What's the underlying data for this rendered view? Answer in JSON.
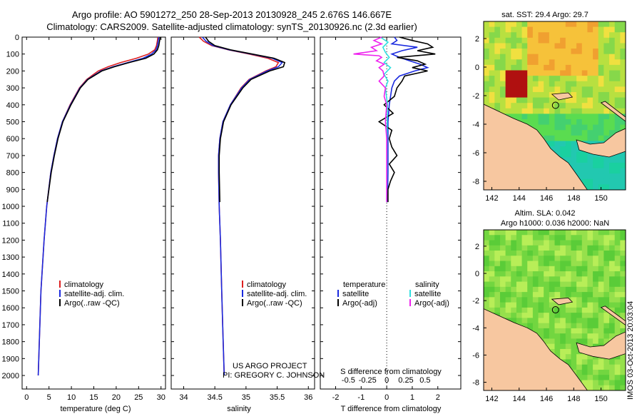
{
  "header": {
    "line1": "Argo profile: AO 5901272_250 28-Sep-2013 20130928_245 2.676S 146.667E",
    "line2": "Climatology: CARS2009. Satellite-adjusted climatology: synTS_20130926.nc (2.3d earlier)"
  },
  "colors": {
    "climatology": "#dd2020",
    "satellite": "#1a2adf",
    "argo": "#000000",
    "sal_satellite": "#30e0e0",
    "sal_argo": "#ee22ee"
  },
  "chart_data": [
    {
      "type": "line",
      "id": "temperature",
      "xlabel": "temperature (deg C)",
      "ylabel": "",
      "xlim": [
        -1,
        31
      ],
      "ylim": [
        2080,
        0
      ],
      "xticks": [
        0,
        5,
        10,
        15,
        20,
        25,
        30
      ],
      "yticks": [
        0,
        100,
        200,
        300,
        400,
        500,
        600,
        700,
        800,
        900,
        1000,
        1100,
        1200,
        1300,
        1400,
        1500,
        1600,
        1700,
        1800,
        1900,
        2000
      ],
      "series": [
        {
          "name": "climatology",
          "color": "#dd2020",
          "depth": [
            0,
            20,
            50,
            75,
            100,
            125,
            150,
            175,
            200,
            250,
            300,
            400,
            500,
            600,
            700,
            800,
            1000,
            1200,
            1500,
            1750,
            2000
          ],
          "values": [
            29.3,
            29.2,
            29.0,
            28.6,
            27.2,
            24.5,
            21.0,
            18.2,
            16.0,
            13.4,
            11.8,
            9.7,
            8.0,
            6.9,
            6.1,
            5.4,
            4.5,
            3.9,
            3.2,
            2.9,
            2.6
          ]
        },
        {
          "name": "satellite-adj. clim.",
          "color": "#1a2adf",
          "depth": [
            0,
            20,
            50,
            75,
            100,
            125,
            150,
            175,
            200,
            250,
            300,
            400,
            500,
            600,
            700,
            800,
            1000,
            1200,
            1500,
            1750,
            2000
          ],
          "values": [
            29.5,
            29.4,
            29.2,
            28.9,
            27.9,
            26.0,
            22.6,
            19.3,
            16.6,
            13.6,
            11.9,
            9.8,
            8.0,
            6.9,
            6.1,
            5.4,
            4.5,
            3.9,
            3.2,
            2.9,
            2.6
          ]
        },
        {
          "name": "Argo(..raw -QC)",
          "color": "#000000",
          "depth": [
            0,
            20,
            50,
            75,
            100,
            125,
            150,
            175,
            200,
            250,
            300,
            400,
            500,
            600,
            700,
            800,
            975
          ],
          "values": [
            29.8,
            29.7,
            29.5,
            29.2,
            28.4,
            26.6,
            22.9,
            19.6,
            16.8,
            13.7,
            12.0,
            9.9,
            8.1,
            7.0,
            6.2,
            5.5,
            4.6
          ]
        }
      ],
      "legend": [
        "climatology",
        "satellite-adj. clim.",
        "Argo(..raw -QC)"
      ]
    },
    {
      "type": "line",
      "id": "salinity",
      "xlabel": "salinity",
      "ylabel": "",
      "xlim": [
        33.8,
        36.1
      ],
      "ylim": [
        2080,
        0
      ],
      "xticks": [
        34,
        34.5,
        35,
        35.5,
        36
      ],
      "series": [
        {
          "name": "climatology",
          "color": "#dd2020",
          "depth": [
            0,
            25,
            50,
            75,
            100,
            125,
            150,
            175,
            200,
            250,
            300,
            400,
            500,
            600,
            700,
            800,
            1000,
            1200,
            1500,
            1750,
            2000
          ],
          "values": [
            34.25,
            34.32,
            34.45,
            34.72,
            35.05,
            35.35,
            35.52,
            35.48,
            35.32,
            35.05,
            34.92,
            34.75,
            34.63,
            34.58,
            34.56,
            34.56,
            34.57,
            34.59,
            34.61,
            34.63,
            34.65
          ]
        },
        {
          "name": "satellite-adj. clim.",
          "color": "#1a2adf",
          "depth": [
            0,
            25,
            50,
            75,
            100,
            125,
            150,
            175,
            200,
            250,
            300,
            400,
            500,
            600,
            700,
            800,
            1000,
            1200,
            1500,
            1750,
            2000
          ],
          "values": [
            34.3,
            34.36,
            34.47,
            34.73,
            35.08,
            35.42,
            35.58,
            35.52,
            35.34,
            35.06,
            34.93,
            34.75,
            34.63,
            34.58,
            34.56,
            34.56,
            34.57,
            34.59,
            34.61,
            34.63,
            34.65
          ]
        },
        {
          "name": "Argo(..raw -QC)",
          "color": "#000000",
          "depth": [
            0,
            25,
            50,
            75,
            100,
            125,
            150,
            175,
            200,
            250,
            300,
            400,
            500,
            600,
            700,
            800,
            975
          ],
          "values": [
            34.35,
            34.4,
            34.5,
            34.75,
            35.1,
            35.45,
            35.62,
            35.6,
            35.38,
            35.08,
            34.95,
            34.76,
            34.64,
            34.59,
            34.57,
            34.57,
            34.58
          ]
        }
      ],
      "legend": [
        "climatology",
        "satellite-adj. clim.",
        "Argo(..raw -QC)"
      ],
      "annotation": [
        "US ARGO PROJECT",
        "PI: GREGORY C. JOHNSON"
      ]
    },
    {
      "type": "line",
      "id": "difference",
      "xlabel": "T difference from climatology",
      "xlabel2": "S difference from climatology",
      "xlim": [
        -2.6,
        2.9
      ],
      "ylim": [
        2080,
        0
      ],
      "xticks": [
        -2,
        -1,
        0,
        1,
        2
      ],
      "xticks_labels": [
        "-2",
        "-1",
        "0",
        "1",
        "2"
      ],
      "xticks_top": [
        -1.5,
        -0.75,
        0,
        0.75,
        1.5
      ],
      "xticks_top_labels": [
        "-0.5",
        "-0.25",
        "0",
        "0.25",
        "0.5"
      ],
      "series": [
        {
          "name": "temperature satellite",
          "color": "#1a2adf",
          "depth": [
            0,
            20,
            40,
            60,
            80,
            100,
            120,
            140,
            160,
            180,
            200,
            230,
            260,
            300,
            400,
            500,
            600,
            800,
            975
          ],
          "values": [
            0.3,
            0.4,
            0.2,
            1.2,
            0.6,
            0.2,
            0.5,
            0.9,
            1.3,
            1.6,
            1.1,
            0.5,
            0.3,
            0.2,
            0.1,
            0.05,
            0.05,
            0.05,
            0.03
          ]
        },
        {
          "name": "temperature Argo(-adj)",
          "color": "#000000",
          "depth": [
            0,
            20,
            40,
            60,
            80,
            100,
            120,
            140,
            160,
            180,
            200,
            230,
            260,
            300,
            350,
            400,
            450,
            500,
            550,
            600,
            650,
            700,
            750,
            800,
            850,
            900,
            975
          ],
          "values": [
            0.5,
            1.0,
            1.6,
            1.8,
            1.2,
            1.9,
            0.4,
            1.2,
            1.5,
            1.0,
            1.6,
            0.7,
            0.6,
            0.4,
            0.3,
            -0.1,
            0.25,
            -0.3,
            0.2,
            0.1,
            0.2,
            0.4,
            0.1,
            0.3,
            0.15,
            0.05,
            0.05
          ]
        },
        {
          "name": "salinity satellite",
          "color": "#30e0e0",
          "depth": [
            0,
            30,
            60,
            90,
            120,
            150,
            180,
            220,
            260,
            300,
            400,
            500,
            600,
            800,
            975
          ],
          "values": [
            -0.25,
            0.05,
            -0.15,
            -0.05,
            0.1,
            -0.1,
            0.15,
            -0.1,
            0.05,
            -0.05,
            0.03,
            0.02,
            0.01,
            0.01,
            0.0
          ]
        },
        {
          "name": "salinity Argo(-adj)",
          "color": "#ee22ee",
          "depth": [
            0,
            20,
            40,
            60,
            80,
            100,
            110,
            120,
            140,
            160,
            180,
            200,
            230,
            260,
            300,
            350,
            400,
            500,
            600,
            800,
            975
          ],
          "values": [
            -0.2,
            -0.5,
            -0.2,
            -0.6,
            -0.4,
            -1.3,
            -0.3,
            -0.2,
            -0.4,
            -0.1,
            -0.3,
            -0.15,
            -0.1,
            -0.3,
            -0.05,
            -0.1,
            0.0,
            -0.05,
            0.0,
            0.0,
            0.0
          ]
        }
      ],
      "legend_temperature": {
        "heading": "temperature",
        "items": [
          "satellite",
          "Argo(-adj)"
        ]
      },
      "legend_salinity": {
        "heading": "salinity",
        "items": [
          "satellite",
          "Argo(-adj)"
        ]
      }
    },
    {
      "type": "heatmap",
      "id": "sst_map",
      "title": "sat. SST: 29.4 Argo: 29.7",
      "xticks": [
        142,
        144,
        146,
        148,
        150
      ],
      "yticks": [
        2,
        0,
        -2,
        -4,
        -6,
        -8
      ],
      "xlim": [
        141.4,
        151.8
      ],
      "ylim": [
        -8.6,
        3.2
      ],
      "argo_position": {
        "lon": 146.667,
        "lat": -2.676
      }
    },
    {
      "type": "heatmap",
      "id": "sla_map",
      "title": "Altim. SLA: 0.042",
      "subtitle": "Argo h1000: 0.036 h2000: NaN",
      "xticks": [
        142,
        144,
        146,
        148,
        150
      ],
      "yticks": [
        2,
        0,
        -2,
        -4,
        -6,
        -8
      ],
      "xlim": [
        141.4,
        151.8
      ],
      "ylim": [
        -8.6,
        3.2
      ],
      "argo_position": {
        "lon": 146.667,
        "lat": -2.676
      }
    }
  ],
  "side_text": "IMOS 03-Oct-2013 20:03:04"
}
